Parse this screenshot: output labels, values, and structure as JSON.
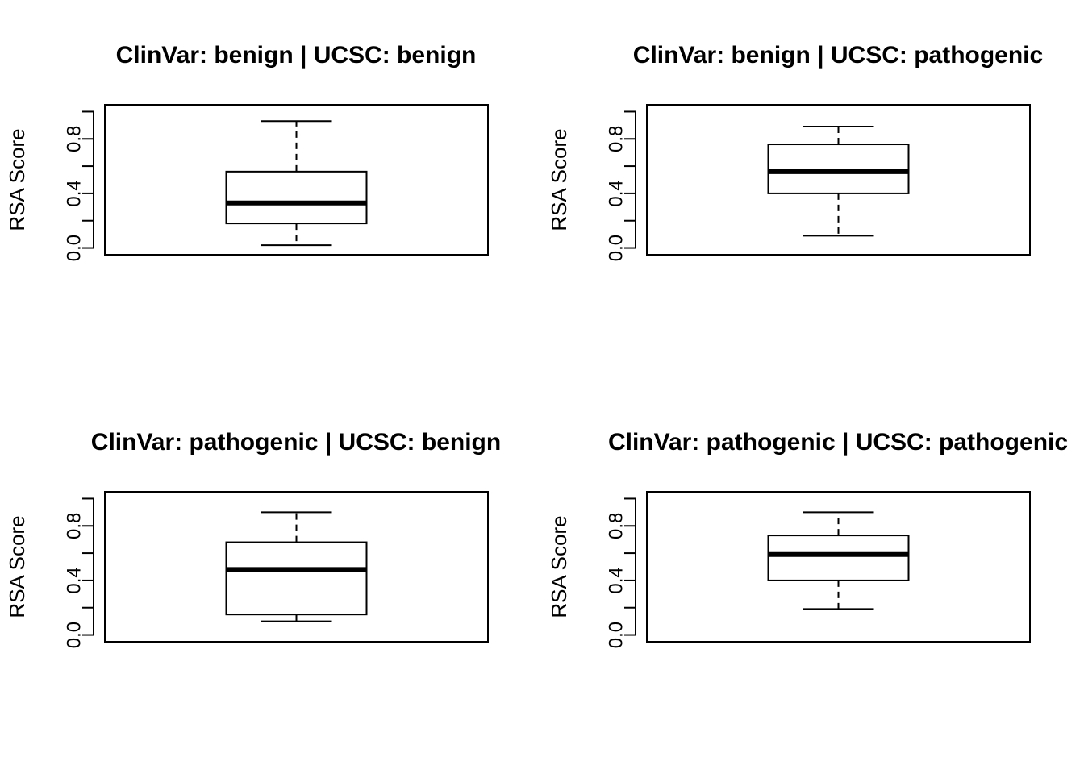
{
  "chart_data": [
    {
      "type": "box",
      "title": "ClinVar: benign | UCSC: benign",
      "ylabel": "RSA Score",
      "ylim": [
        -0.05,
        1.05
      ],
      "yticks": [
        0.0,
        0.2,
        0.4,
        0.6,
        0.8,
        1.0
      ],
      "ytick_labels": [
        "0.0",
        "",
        "0.4",
        "",
        "0.8",
        ""
      ],
      "box": {
        "min": 0.02,
        "q1": 0.18,
        "median": 0.33,
        "q3": 0.56,
        "max": 0.93
      }
    },
    {
      "type": "box",
      "title": "ClinVar: benign | UCSC: pathogenic",
      "ylabel": "RSA Score",
      "ylim": [
        -0.05,
        1.05
      ],
      "yticks": [
        0.0,
        0.2,
        0.4,
        0.6,
        0.8,
        1.0
      ],
      "ytick_labels": [
        "0.0",
        "",
        "0.4",
        "",
        "0.8",
        ""
      ],
      "box": {
        "min": 0.09,
        "q1": 0.4,
        "median": 0.56,
        "q3": 0.76,
        "max": 0.89
      }
    },
    {
      "type": "box",
      "title": "ClinVar: pathogenic | UCSC: benign",
      "ylabel": "RSA Score",
      "ylim": [
        -0.05,
        1.05
      ],
      "yticks": [
        0.0,
        0.2,
        0.4,
        0.6,
        0.8,
        1.0
      ],
      "ytick_labels": [
        "0.0",
        "",
        "0.4",
        "",
        "0.8",
        ""
      ],
      "box": {
        "min": 0.1,
        "q1": 0.15,
        "median": 0.48,
        "q3": 0.68,
        "max": 0.9
      }
    },
    {
      "type": "box",
      "title": "ClinVar: pathogenic | UCSC: pathogenic",
      "ylabel": "RSA Score",
      "ylim": [
        -0.05,
        1.05
      ],
      "yticks": [
        0.0,
        0.2,
        0.4,
        0.6,
        0.8,
        1.0
      ],
      "ytick_labels": [
        "0.0",
        "",
        "0.4",
        "",
        "0.8",
        ""
      ],
      "box": {
        "min": 0.19,
        "q1": 0.4,
        "median": 0.59,
        "q3": 0.73,
        "max": 0.9
      }
    }
  ]
}
